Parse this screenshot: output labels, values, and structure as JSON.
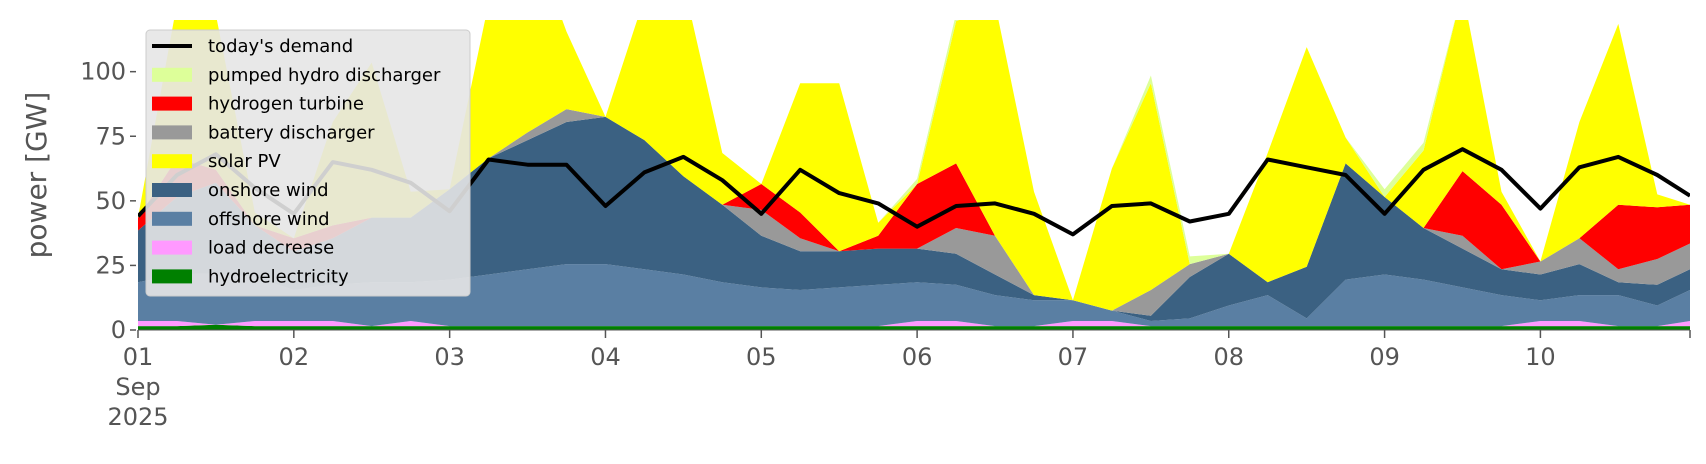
{
  "chart_data": {
    "type": "area",
    "ylabel": "power [GW]",
    "xlabel": "",
    "ylim": [
      0,
      120
    ],
    "xlim": [
      0,
      9.96
    ],
    "yticks": [
      0,
      25,
      50,
      75,
      100
    ],
    "ytick_labels": [
      "0",
      "25",
      "50",
      "75",
      "100"
    ],
    "xticks": [
      0,
      1,
      2,
      3,
      4,
      5,
      6,
      7,
      8,
      9
    ],
    "xtick_labels": [
      "01\nSep\n2025",
      "02",
      "03",
      "04",
      "05",
      "06",
      "07",
      "08",
      "09",
      "10"
    ],
    "legend_position": "top-left",
    "grid": false,
    "x_unit": "days since 01 Sep 2025",
    "x": [
      0,
      0.25,
      0.5,
      0.75,
      1,
      1.25,
      1.5,
      1.75,
      2,
      2.25,
      2.5,
      2.75,
      3,
      3.25,
      3.5,
      3.75,
      4,
      4.25,
      4.5,
      4.75,
      5,
      5.25,
      5.5,
      5.75,
      6,
      6.25,
      6.5,
      6.75,
      7,
      7.25,
      7.5,
      7.75,
      8,
      8.25,
      8.5,
      8.75,
      9,
      9.25,
      9.5,
      9.75,
      9.96
    ],
    "series": [
      {
        "name": "hydroelectricity",
        "color": "#008000",
        "values": [
          1.5,
          1.5,
          2,
          1.5,
          1.5,
          1.5,
          1.5,
          1.5,
          1.5,
          1.5,
          1.5,
          1.5,
          1.5,
          1.5,
          1.5,
          1.5,
          1.5,
          1.5,
          1.5,
          1.5,
          1.5,
          1.5,
          1.5,
          1.5,
          1.5,
          1.5,
          1.5,
          1.5,
          1.5,
          1.5,
          1.5,
          1.5,
          1.5,
          1.5,
          1.5,
          1.5,
          1.5,
          1.5,
          1.5,
          1.5,
          1.5
        ]
      },
      {
        "name": "load decrease",
        "color": "#ff99ff",
        "values": [
          2,
          2,
          0,
          2,
          2,
          2,
          0,
          2,
          0,
          0,
          0,
          0,
          0,
          0,
          0,
          0,
          0,
          0,
          0,
          0,
          2,
          2,
          0,
          0,
          2,
          2,
          0,
          0,
          0,
          0,
          0,
          0,
          0,
          0,
          0,
          0,
          2,
          2,
          0,
          0,
          2
        ]
      },
      {
        "name": "offshore wind",
        "color": "#5a7fa3",
        "values": [
          15,
          18,
          20,
          17,
          12,
          14,
          17,
          15,
          18,
          20,
          22,
          24,
          24,
          22,
          20,
          17,
          15,
          14,
          15,
          16,
          15,
          14,
          12,
          10,
          8,
          4,
          2,
          3,
          8,
          12,
          3,
          18,
          20,
          18,
          15,
          12,
          8,
          10,
          12,
          8,
          12
        ]
      },
      {
        "name": "onshore wind",
        "color": "#3b6182",
        "values": [
          20,
          30,
          35,
          20,
          15,
          18,
          25,
          25,
          35,
          45,
          50,
          55,
          57,
          50,
          38,
          30,
          20,
          15,
          14,
          14,
          13,
          12,
          8,
          2,
          0,
          0,
          2,
          16,
          20,
          5,
          20,
          45,
          30,
          20,
          15,
          10,
          10,
          12,
          5,
          8,
          8
        ]
      },
      {
        "name": "battery discharger",
        "color": "#999999",
        "values": [
          0,
          0,
          0,
          0,
          0,
          0,
          0,
          0,
          0,
          0,
          3,
          5,
          0,
          0,
          0,
          0,
          10,
          5,
          0,
          0,
          0,
          10,
          15,
          0,
          0,
          0,
          10,
          5,
          0,
          0,
          0,
          0,
          0,
          0,
          5,
          0,
          5,
          10,
          5,
          10,
          10
        ]
      },
      {
        "name": "hydrogen turbine",
        "color": "#ff0000",
        "values": [
          5,
          15,
          5,
          0,
          5,
          5,
          0,
          0,
          0,
          0,
          0,
          0,
          0,
          0,
          0,
          0,
          10,
          10,
          0,
          5,
          25,
          25,
          0,
          0,
          0,
          0,
          0,
          0,
          0,
          0,
          0,
          0,
          0,
          0,
          25,
          25,
          0,
          0,
          25,
          20,
          15
        ]
      },
      {
        "name": "solar PV",
        "color": "#ffff00",
        "values": [
          0,
          60,
          60,
          5,
          0,
          40,
          60,
          10,
          0,
          60,
          80,
          30,
          0,
          55,
          75,
          20,
          0,
          50,
          65,
          5,
          0,
          55,
          90,
          40,
          0,
          55,
          80,
          0,
          0,
          50,
          85,
          10,
          0,
          30,
          70,
          5,
          0,
          45,
          70,
          5,
          0
        ]
      },
      {
        "name": "pumped hydro discharger",
        "color": "#ddff99",
        "values": [
          0,
          0,
          0,
          0,
          0,
          0,
          0,
          0,
          0,
          0,
          0,
          0,
          0,
          0,
          0,
          0,
          0,
          0,
          0,
          0,
          2,
          3,
          0,
          0,
          0,
          0,
          3,
          3,
          0,
          0,
          0,
          0,
          3,
          3,
          0,
          0,
          0,
          0,
          0,
          0,
          0
        ]
      }
    ],
    "demand": {
      "name": "today's demand",
      "color": "#000000",
      "values": [
        44,
        60,
        68,
        55,
        45,
        65,
        62,
        57,
        46,
        66,
        64,
        64,
        48,
        61,
        67,
        58,
        45,
        62,
        53,
        49,
        40,
        48,
        49,
        45,
        37,
        48,
        49,
        42,
        45,
        66,
        63,
        60,
        45,
        62,
        70,
        62,
        47,
        63,
        67,
        60,
        52
      ]
    },
    "legend": [
      {
        "label": "today's demand",
        "kind": "line",
        "color": "#000000"
      },
      {
        "label": "pumped hydro discharger",
        "kind": "patch",
        "color": "#ddff99"
      },
      {
        "label": "hydrogen turbine",
        "kind": "patch",
        "color": "#ff0000"
      },
      {
        "label": "battery discharger",
        "kind": "patch",
        "color": "#999999"
      },
      {
        "label": "solar PV",
        "kind": "patch",
        "color": "#ffff00"
      },
      {
        "label": "onshore wind",
        "kind": "patch",
        "color": "#3b6182"
      },
      {
        "label": "offshore wind",
        "kind": "patch",
        "color": "#5a7fa3"
      },
      {
        "label": "load decrease",
        "kind": "patch",
        "color": "#ff99ff"
      },
      {
        "label": "hydroelectricity",
        "kind": "patch",
        "color": "#008000"
      }
    ]
  }
}
